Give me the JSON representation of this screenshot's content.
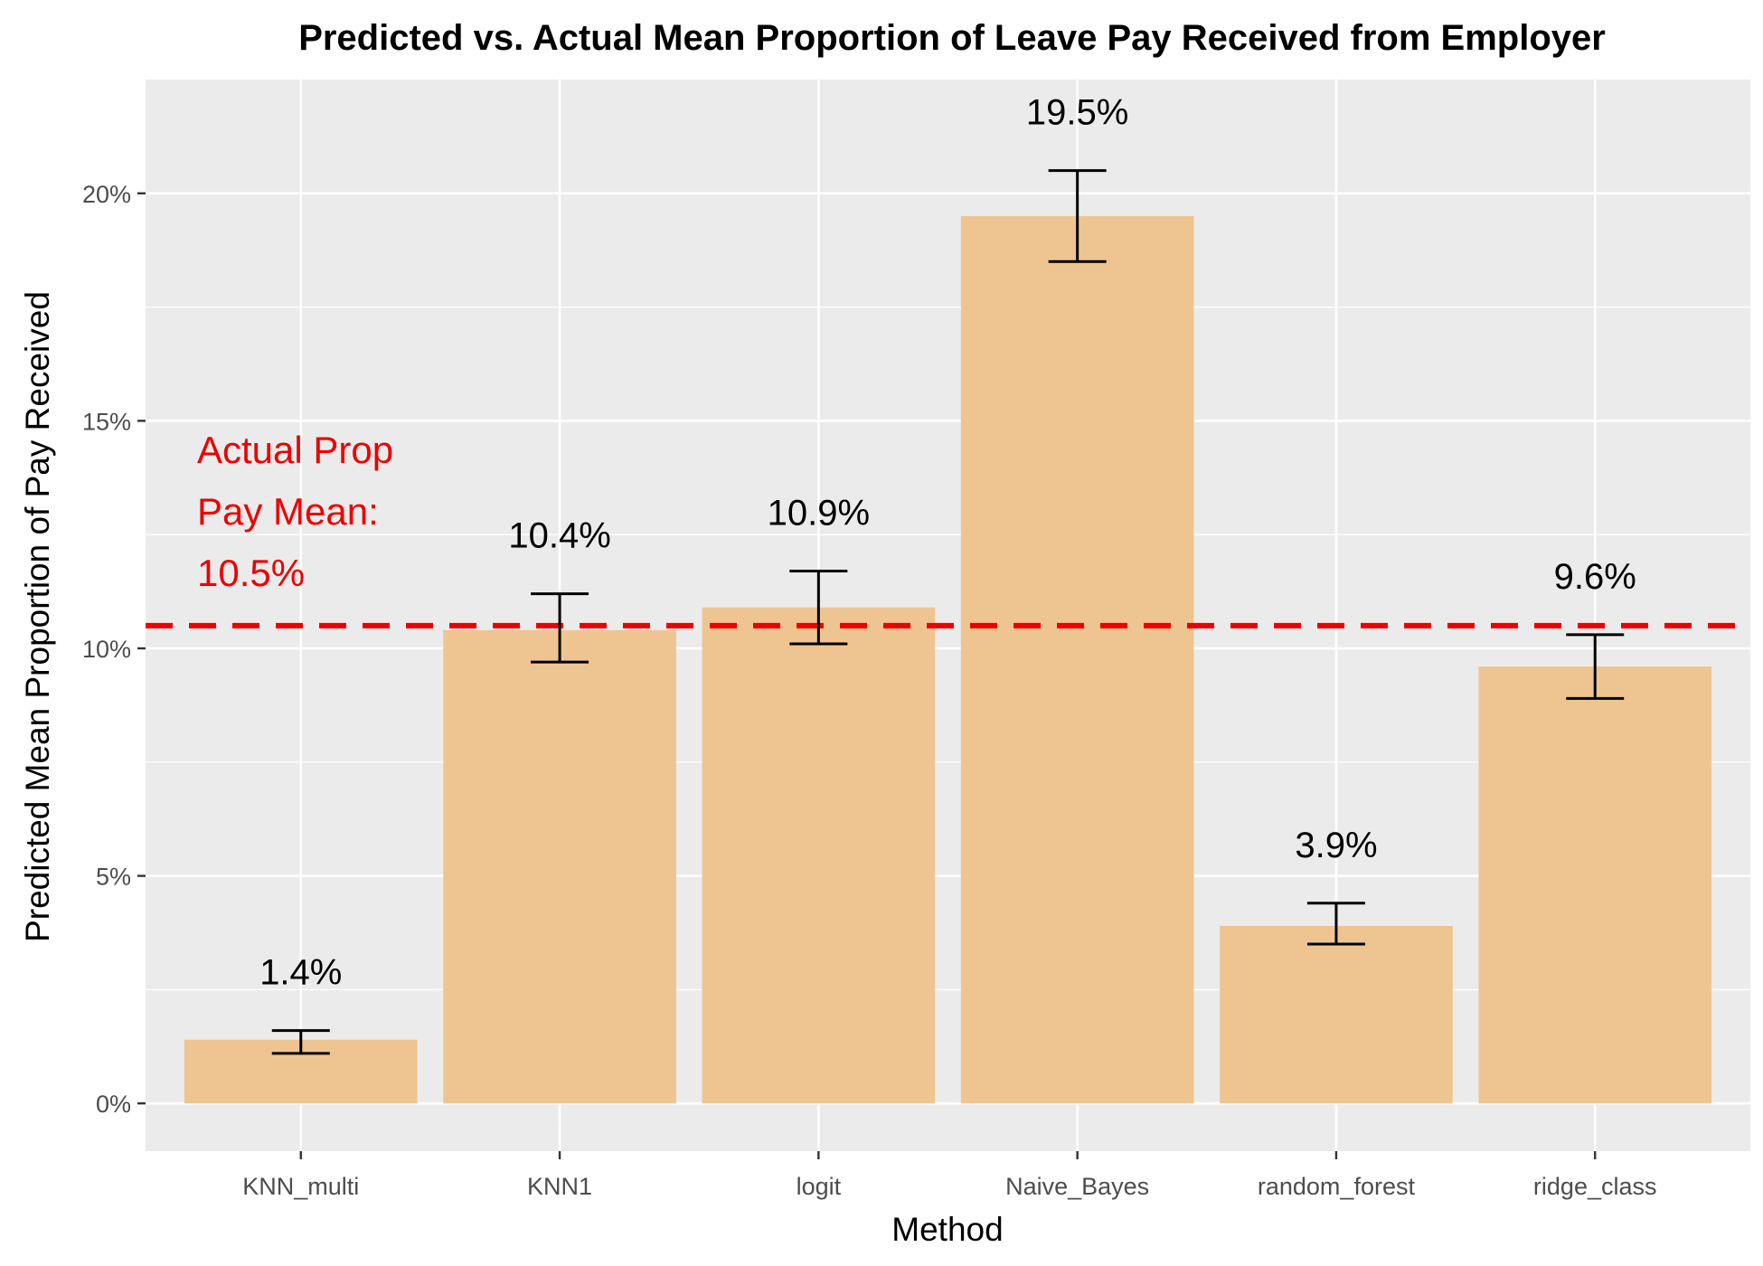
{
  "chart_data": {
    "type": "bar",
    "title": "Predicted vs. Actual Mean Proportion of Leave Pay Received from Employer",
    "xlabel": "Method",
    "ylabel": "Predicted Mean Proportion of Pay Received",
    "categories": [
      "KNN_multi",
      "KNN1",
      "logit",
      "Naive_Bayes",
      "random_forest",
      "ridge_class"
    ],
    "values": [
      1.4,
      10.4,
      10.9,
      19.5,
      3.9,
      9.6
    ],
    "value_labels": [
      "1.4%",
      "10.4%",
      "10.9%",
      "19.5%",
      "3.9%",
      "9.6%"
    ],
    "error_low": [
      1.1,
      9.7,
      10.1,
      18.5,
      3.5,
      8.9
    ],
    "error_high": [
      1.6,
      11.2,
      11.7,
      20.5,
      4.4,
      10.3
    ],
    "ylim": [
      -1.05,
      22.5
    ],
    "yticks": [
      0,
      5,
      10,
      15,
      20
    ],
    "ytick_labels": [
      "0%",
      "5%",
      "10%",
      "15%",
      "20%"
    ],
    "reference_line": {
      "value": 10.5,
      "label_lines": [
        "Actual Prop",
        "Pay Mean:",
        "10.5%"
      ],
      "color": "#ee0000",
      "style": "dashed"
    },
    "grid": true,
    "legend": "none",
    "colors": {
      "bar": "#eec591",
      "panel": "#ebebeb",
      "gridline": "#ffffff",
      "errorbar": "#000000"
    }
  }
}
